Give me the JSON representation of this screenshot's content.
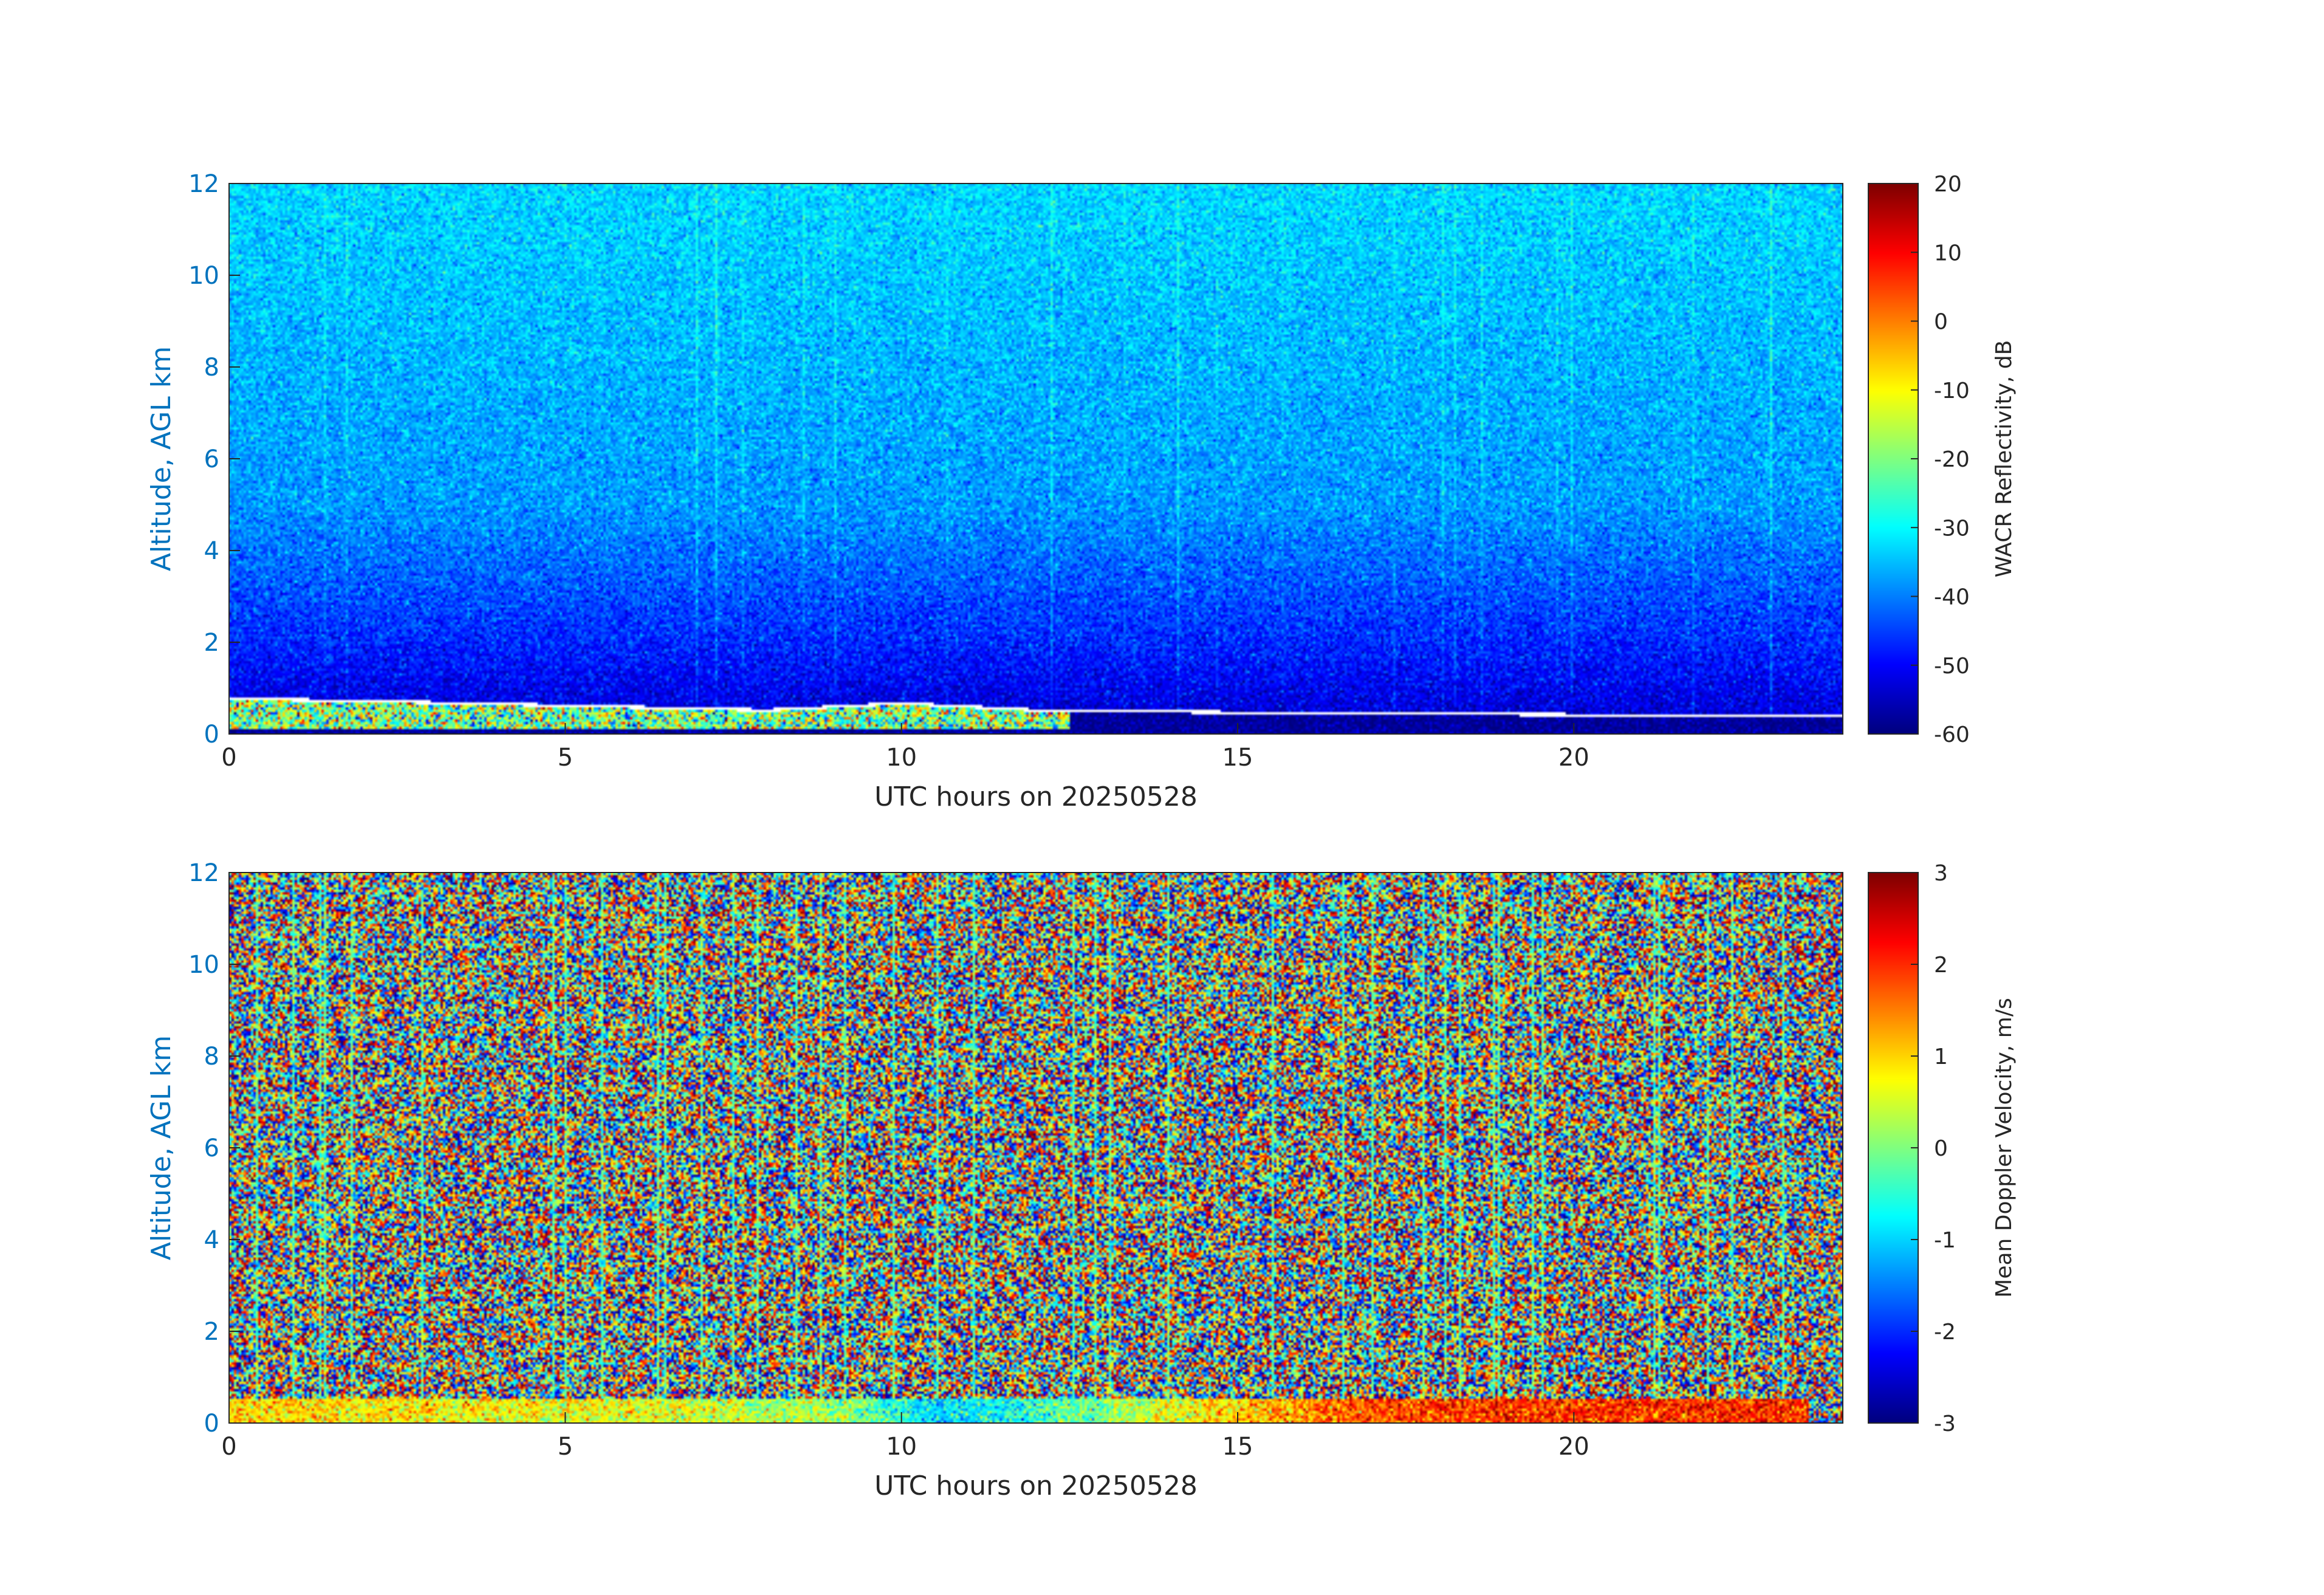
{
  "chart_data": [
    {
      "type": "heatmap",
      "xlabel": "UTC hours on 20250528",
      "ylabel": "Altitude, AGL km",
      "xlim": [
        0,
        24
      ],
      "ylim": [
        0,
        12
      ],
      "xticks": [
        0,
        5,
        10,
        15,
        20
      ],
      "yticks": [
        0,
        2,
        4,
        6,
        8,
        10,
        12
      ],
      "colormap": "jet",
      "colorbar": {
        "label": "WACR Reflectivity, dB",
        "range": [
          -60,
          20
        ],
        "ticks": [
          -60,
          -50,
          -40,
          -30,
          -20,
          -10,
          0,
          10,
          20
        ]
      },
      "grid": false,
      "features": {
        "background_gradient_dB": {
          "at_0km": -55,
          "at_2km": -47,
          "at_5km": -38,
          "at_12km": -33
        },
        "cloud_layer_top_km": [
          [
            0,
            0.8
          ],
          [
            2,
            0.75
          ],
          [
            5,
            0.65
          ],
          [
            8,
            0.55
          ],
          [
            10,
            0.7
          ],
          [
            12,
            0.55
          ],
          [
            15,
            0.5
          ],
          [
            20,
            0.45
          ],
          [
            24,
            0.45
          ]
        ]
      }
    },
    {
      "type": "heatmap",
      "xlabel": "UTC hours on 20250528",
      "ylabel": "Altitude, AGL km",
      "xlim": [
        0,
        24
      ],
      "ylim": [
        0,
        12
      ],
      "xticks": [
        0,
        5,
        10,
        15,
        20
      ],
      "yticks": [
        0,
        2,
        4,
        6,
        8,
        10,
        12
      ],
      "colormap": "jet",
      "colorbar": {
        "label": "Mean Doppler Velocity, m/s",
        "range": [
          -3,
          3
        ],
        "ticks": [
          -3,
          -2,
          -1,
          0,
          1,
          2,
          3
        ]
      },
      "grid": false,
      "features": {
        "noise_range_ms": [
          -3,
          3
        ],
        "low_layer_velocity_ms": [
          [
            0,
            1.0
          ],
          [
            3,
            0.8
          ],
          [
            6,
            0.6
          ],
          [
            9,
            0.2
          ],
          [
            10.5,
            -1.0
          ],
          [
            12,
            -0.5
          ],
          [
            14,
            0.6
          ],
          [
            17,
            1.8
          ],
          [
            20,
            2.0
          ]
        ]
      }
    }
  ]
}
